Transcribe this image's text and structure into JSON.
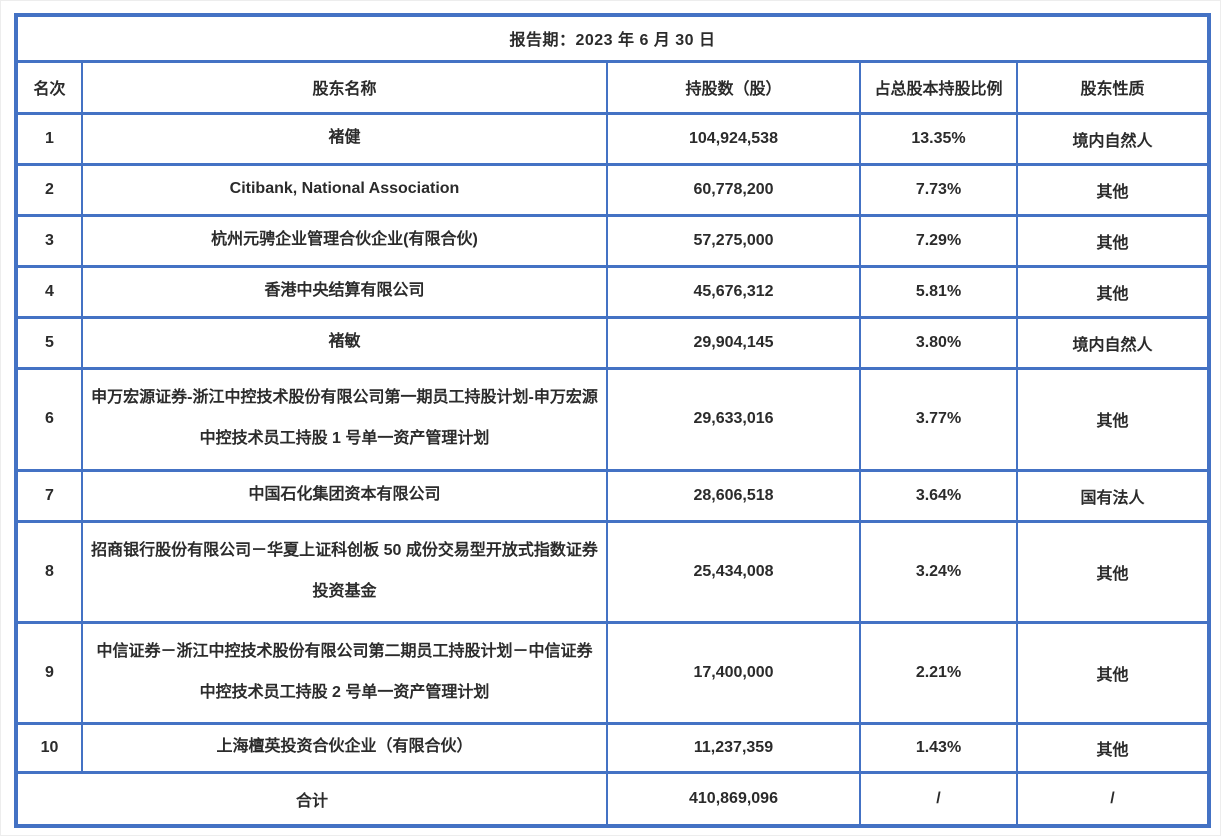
{
  "page": {
    "background_color": "#ffffff"
  },
  "table": {
    "border_color": "#4472c4",
    "text_color": "#2b2b2b",
    "report_period": "报告期：2023 年 6 月 30 日",
    "columns": [
      "名次",
      "股东名称",
      "持股数（股）",
      "占总股本持股比例",
      "股东性质"
    ],
    "rows": [
      {
        "rank": "1",
        "name": "褚健",
        "shares": "104,924,538",
        "pct": "13.35%",
        "nature": "境内自然人"
      },
      {
        "rank": "2",
        "name": "Citibank, National Association",
        "shares": "60,778,200",
        "pct": "7.73%",
        "nature": "其他"
      },
      {
        "rank": "3",
        "name": "杭州元骋企业管理合伙企业(有限合伙)",
        "shares": "57,275,000",
        "pct": "7.29%",
        "nature": "其他"
      },
      {
        "rank": "4",
        "name": "香港中央结算有限公司",
        "shares": "45,676,312",
        "pct": "5.81%",
        "nature": "其他"
      },
      {
        "rank": "5",
        "name": "褚敏",
        "shares": "29,904,145",
        "pct": "3.80%",
        "nature": "境内自然人"
      },
      {
        "rank": "6",
        "name": "申万宏源证券-浙江中控技术股份有限公司第一期员工持股计划-申万宏源中控技术员工持股 1 号单一资产管理计划",
        "shares": "29,633,016",
        "pct": "3.77%",
        "nature": "其他"
      },
      {
        "rank": "7",
        "name": "中国石化集团资本有限公司",
        "shares": "28,606,518",
        "pct": "3.64%",
        "nature": "国有法人"
      },
      {
        "rank": "8",
        "name": "招商银行股份有限公司－华夏上证科创板 50 成份交易型开放式指数证券投资基金",
        "shares": "25,434,008",
        "pct": "3.24%",
        "nature": "其他"
      },
      {
        "rank": "9",
        "name": "中信证券－浙江中控技术股份有限公司第二期员工持股计划－中信证券中控技术员工持股 2 号单一资产管理计划",
        "shares": "17,400,000",
        "pct": "2.21%",
        "nature": "其他"
      },
      {
        "rank": "10",
        "name": "上海檀英投资合伙企业（有限合伙）",
        "shares": "11,237,359",
        "pct": "1.43%",
        "nature": "其他"
      }
    ],
    "total": {
      "label": "合计",
      "shares": "410,869,096",
      "pct": "/",
      "nature": "/"
    }
  }
}
